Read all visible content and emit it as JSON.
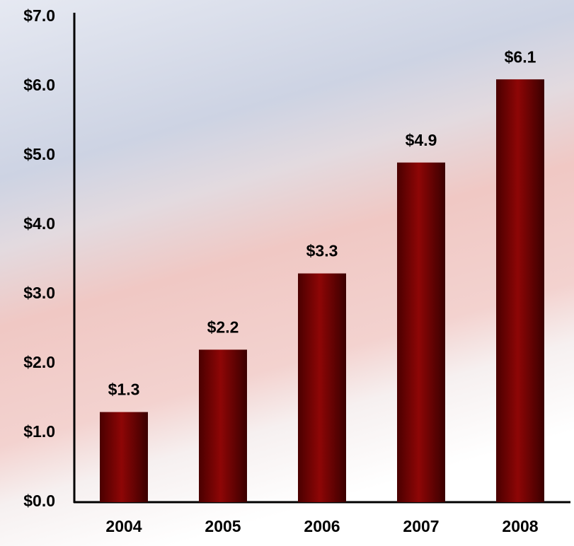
{
  "chart_data": {
    "type": "bar",
    "categories": [
      "2004",
      "2005",
      "2006",
      "2007",
      "2008"
    ],
    "values": [
      1.3,
      2.2,
      3.3,
      4.9,
      6.1
    ],
    "value_labels": [
      "$1.3",
      "$2.2",
      "$3.3",
      "$4.9",
      "$6.1"
    ],
    "color": "#7a0000",
    "ylim": [
      0,
      7
    ],
    "yticks": [
      {
        "value": 0,
        "label": "$0.0"
      },
      {
        "value": 1,
        "label": "$1.0"
      },
      {
        "value": 2,
        "label": "$2.0"
      },
      {
        "value": 3,
        "label": "$3.0"
      },
      {
        "value": 4,
        "label": "$4.0"
      },
      {
        "value": 5,
        "label": "$5.0"
      },
      {
        "value": 6,
        "label": "$6.0"
      },
      {
        "value": 7,
        "label": "$7.0"
      }
    ],
    "grid": false
  }
}
